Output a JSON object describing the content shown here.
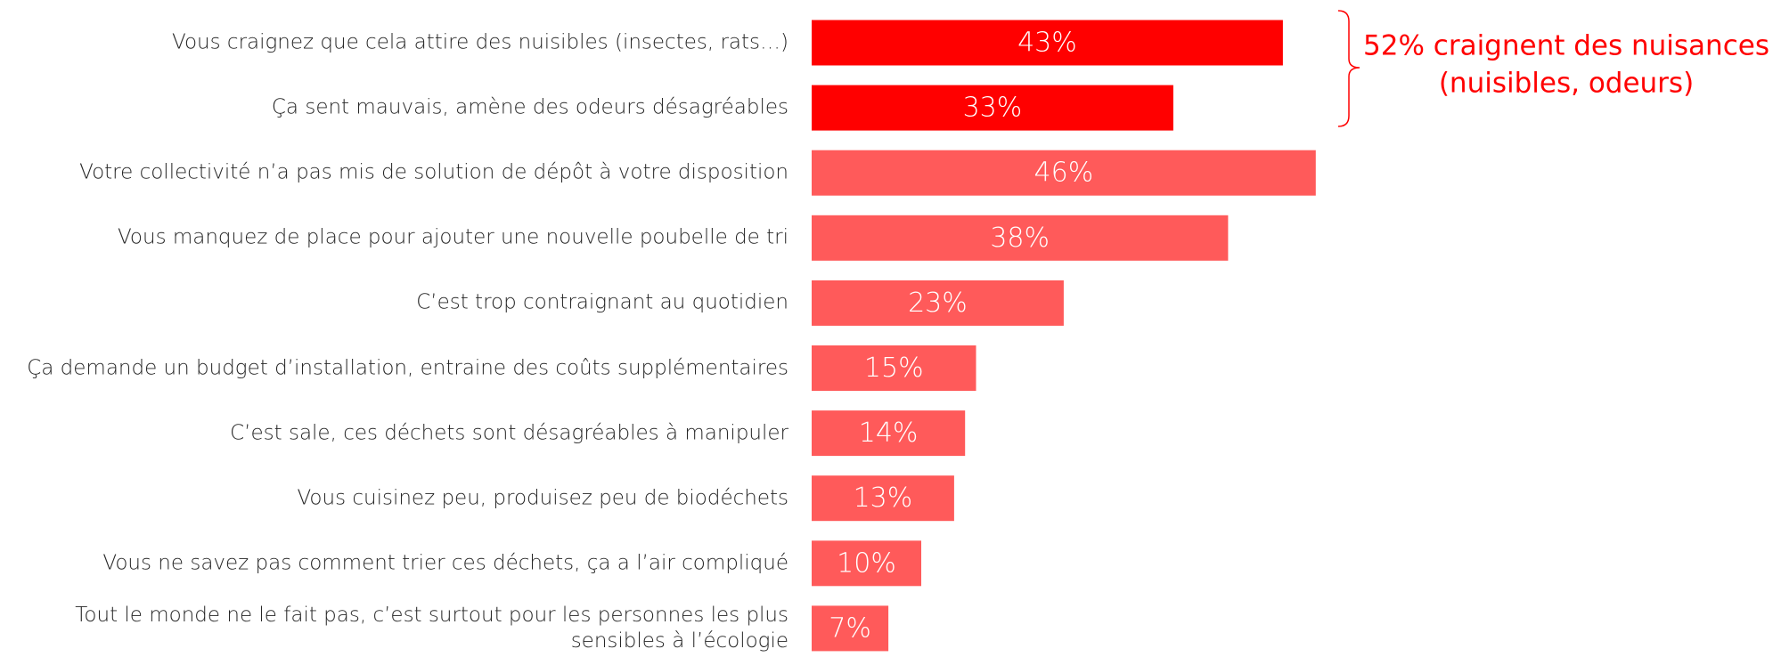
{
  "chart_data": {
    "type": "bar",
    "orientation": "horizontal",
    "categories": [
      "Vous craignez que cela attire des nuisibles (insectes, rats…)",
      "Ça sent mauvais, amène des odeurs désagréables",
      "Votre collectivité n’a pas mis de solution de dépôt à votre disposition",
      "Vous manquez de place pour ajouter une nouvelle poubelle de tri",
      "C’est trop contraignant au quotidien",
      "Ça demande un budget d’installation, entraine des coûts supplémentaires",
      "C’est sale, ces déchets sont désagréables à manipuler",
      "Vous cuisinez peu, produisez peu de biodéchets",
      "Vous ne savez pas comment trier ces déchets, ça a l’air compliqué",
      "Tout le monde ne le fait pas, c’est surtout pour les personnes les plus sensibles à l’écologie"
    ],
    "values": [
      43,
      33,
      46,
      38,
      23,
      15,
      14,
      13,
      10,
      7
    ],
    "value_labels": [
      "43%",
      "33%",
      "46%",
      "38%",
      "23%",
      "15%",
      "14%",
      "13%",
      "10%",
      "7%"
    ],
    "colors": [
      "#ff0000",
      "#ff0000",
      "#ff5a5a",
      "#ff5a5a",
      "#ff5a5a",
      "#ff5a5a",
      "#ff5a5a",
      "#ff5a5a",
      "#ff5a5a",
      "#ff5a5a"
    ],
    "annotation": [
      "52% craignent des nuisances",
      "(nuisibles, odeurs)"
    ],
    "annotation_color": "#ff0000"
  }
}
